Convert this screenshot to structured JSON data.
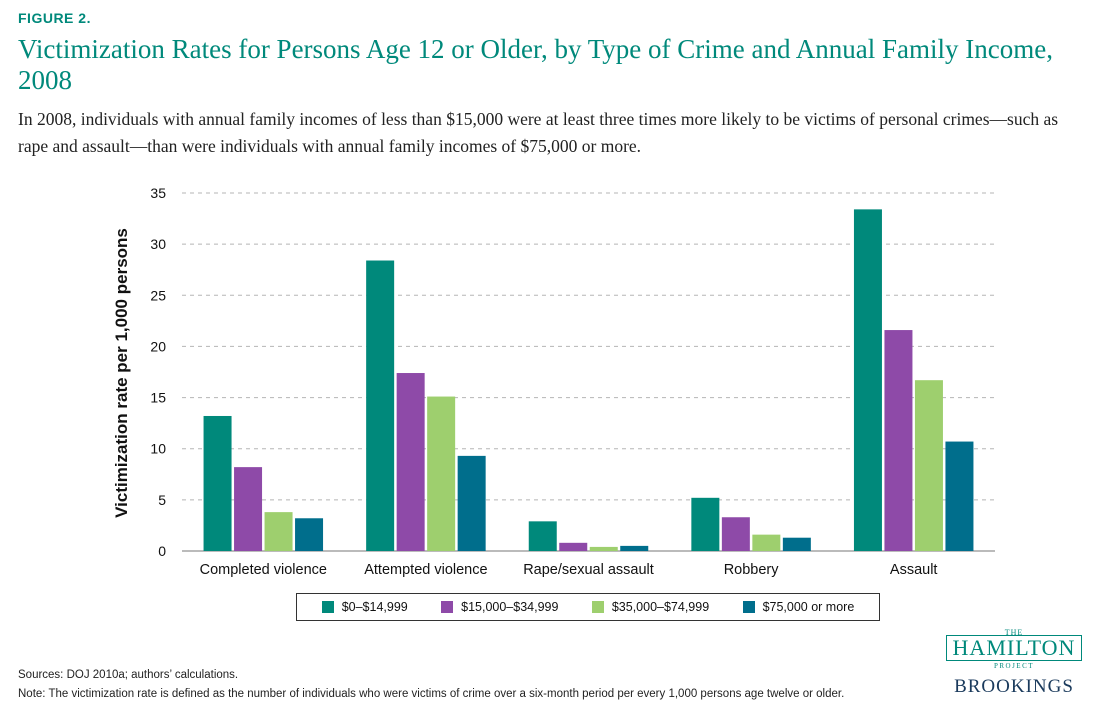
{
  "figure_label": "FIGURE 2.",
  "chart_data": {
    "type": "bar",
    "title": "Victimization Rates for Persons Age 12 or Older, by Type of Crime and Annual Family Income, 2008",
    "subtitle": "In 2008, individuals with annual family incomes of less than $15,000 were at least three times more likely to be victims of personal crimes—such as rape and assault—than were individuals with annual family incomes of $75,000 or more.",
    "xlabel": "",
    "ylabel": "Victimization rate per 1,000 persons",
    "ylim": [
      0,
      35
    ],
    "yticks": [
      0,
      5,
      10,
      15,
      20,
      25,
      30,
      35
    ],
    "grid": true,
    "legend_position": "bottom",
    "categories": [
      "Completed violence",
      "Attempted violence",
      "Rape/sexual assault",
      "Robbery",
      "Assault"
    ],
    "series": [
      {
        "name": "$0–$14,999",
        "color": "#00897b",
        "values": [
          13.2,
          28.4,
          2.9,
          5.2,
          33.4
        ]
      },
      {
        "name": "$15,000–$34,999",
        "color": "#8e4aa8",
        "values": [
          8.2,
          17.4,
          0.8,
          3.3,
          21.6
        ]
      },
      {
        "name": "$35,000–$74,999",
        "color": "#9ecf6e",
        "values": [
          3.8,
          15.1,
          0.4,
          1.6,
          16.7
        ]
      },
      {
        "name": "$75,000 or more",
        "color": "#006e8c",
        "values": [
          3.2,
          9.3,
          0.5,
          1.3,
          10.7
        ]
      }
    ]
  },
  "notes": {
    "sources": "Sources: DOJ 2010a; authors’ calculations.",
    "note": "Note: The victimization rate is defined as the number of individuals who were victims of crime over a six-month period per every 1,000 persons age twelve or older."
  },
  "logo": {
    "the": "THE",
    "hamilton": "HAMILTON",
    "project": "PROJECT",
    "brookings": "BROOKINGS"
  }
}
